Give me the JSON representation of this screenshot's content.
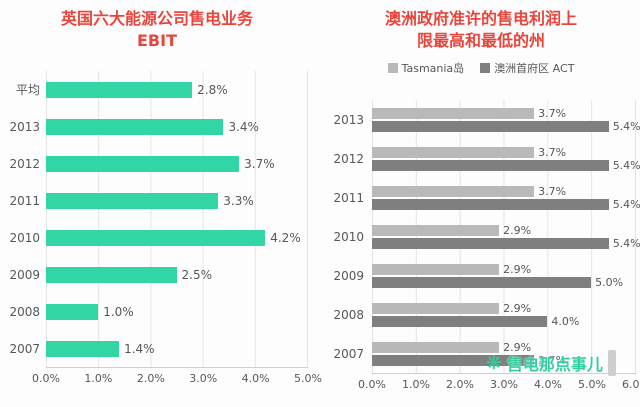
{
  "watermark": {
    "text": "售电那点事儿",
    "icon": "sparkle-icon",
    "color": "#2fcf9f"
  },
  "chart_data": [
    {
      "type": "bar",
      "orientation": "horizontal",
      "title": "英国六大能源公司售电业务",
      "subtitle": "EBIT",
      "title_color": "#e8463c",
      "bar_color": "#32d6a4",
      "categories": [
        "平均",
        "2013",
        "2012",
        "2011",
        "2010",
        "2009",
        "2008",
        "2007"
      ],
      "values": [
        2.8,
        3.4,
        3.7,
        3.3,
        4.2,
        2.5,
        1.0,
        1.4
      ],
      "unit": "%",
      "xlim": [
        0,
        5
      ],
      "x_ticks": [
        "0.0%",
        "1.0%",
        "2.0%",
        "3.0%",
        "4.0%",
        "5.0%"
      ],
      "grid": true,
      "legend": null
    },
    {
      "type": "bar",
      "orientation": "horizontal",
      "title": "澳洲政府准许的售电利润上限最高和最低的州",
      "title_lines": [
        "澳洲政府准许的售电利润上",
        "限最高和最低的州"
      ],
      "title_color": "#e8463c",
      "categories": [
        "2013",
        "2012",
        "2011",
        "2010",
        "2009",
        "2008",
        "2007"
      ],
      "series": [
        {
          "name": "Tasmania岛",
          "color": "#b9b9b9",
          "values": [
            3.7,
            3.7,
            3.7,
            2.9,
            2.9,
            2.9,
            2.9
          ]
        },
        {
          "name": "澳洲首府区 ACT",
          "color": "#7f7f7f",
          "values": [
            5.4,
            5.4,
            5.4,
            5.4,
            5.0,
            4.0,
            3.7
          ]
        }
      ],
      "unit": "%",
      "xlim": [
        0,
        6
      ],
      "x_ticks": [
        "0.0%",
        "1.0%",
        "2.0%",
        "3.0%",
        "4.0%",
        "5.0%",
        "6.0%"
      ],
      "grid": true,
      "legend_position": "top"
    }
  ]
}
